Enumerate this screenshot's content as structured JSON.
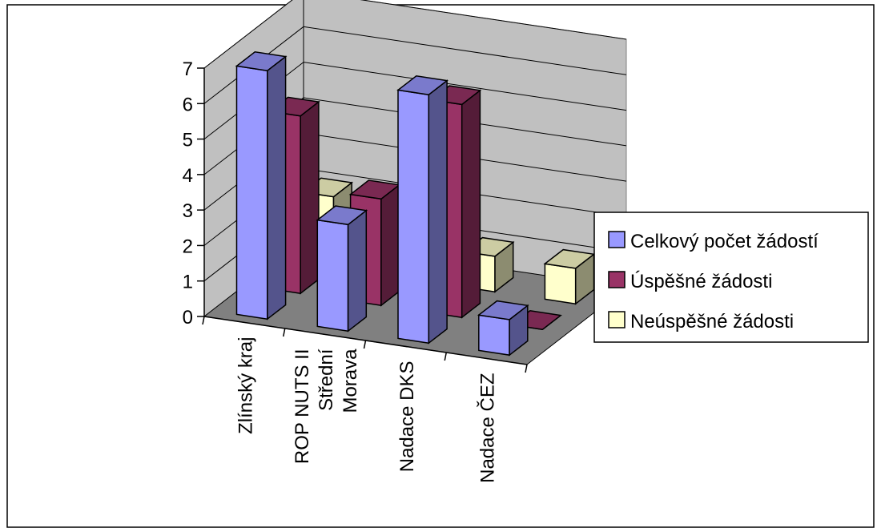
{
  "chart_data": {
    "type": "bar",
    "categories": [
      [
        "Zlínský kraj"
      ],
      [
        "ROP NUTS II",
        "Střední",
        "Morava"
      ],
      [
        "Nadace DKS"
      ],
      [
        "Nadace ČEZ"
      ]
    ],
    "series": [
      {
        "name": "Celkový počet žádostí",
        "values": [
          7,
          3,
          7,
          1
        ],
        "color": "#9999ff"
      },
      {
        "name": "Úspěšné žádosti",
        "values": [
          5,
          3,
          6,
          0
        ],
        "color": "#993366"
      },
      {
        "name": "Neúspěšné žádosti",
        "values": [
          2,
          0,
          1,
          1
        ],
        "color": "#ffffcc"
      }
    ],
    "yticks": [
      "0",
      "1",
      "2",
      "3",
      "4",
      "5",
      "6",
      "7"
    ],
    "ylim": [
      0,
      7
    ],
    "grid": true,
    "legend_position": "right",
    "wall_color": "#c0c0c0",
    "floor_color": "#808080"
  }
}
